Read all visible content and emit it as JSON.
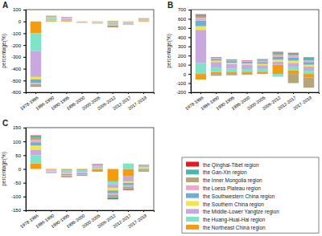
{
  "chart_data": [
    {
      "type": "bar",
      "stacked": true,
      "title": "A",
      "y_label": "percentage(%)",
      "categories": [
        "1978-1986",
        "1986-1990",
        "1990-1995",
        "1995-2000",
        "2000-2005",
        "2006-2012",
        "2012-2017",
        "2017-2019"
      ],
      "ylim": [
        -600,
        100
      ],
      "yticks": [
        -600,
        -500,
        -400,
        -300,
        -200,
        -100,
        0,
        100
      ],
      "series": [
        {
          "name": "the Qinghai-Tibet region",
          "color": "#e41a1c",
          "values": [
            -3,
            1,
            1,
            0,
            0,
            -2,
            0,
            1
          ]
        },
        {
          "name": "the Gan-Xin region",
          "color": "#4db6ac",
          "values": [
            -5,
            2,
            2,
            -1,
            -1,
            -5,
            -2,
            2
          ]
        },
        {
          "name": "the Inner Mongolia region",
          "color": "#b3a77a",
          "values": [
            -15,
            5,
            4,
            -1,
            -2,
            -8,
            -3,
            3
          ]
        },
        {
          "name": "the Loess Plateau region",
          "color": "#f4a6c6",
          "values": [
            -10,
            3,
            3,
            -1,
            -1,
            -4,
            -2,
            2
          ]
        },
        {
          "name": "the Southwestern China region",
          "color": "#6baed6",
          "values": [
            -30,
            4,
            4,
            -2,
            -2,
            -5,
            -3,
            3
          ]
        },
        {
          "name": "the Southern China region",
          "color": "#f5e642",
          "values": [
            -20,
            3,
            3,
            -1,
            -2,
            -4,
            -2,
            2
          ]
        },
        {
          "name": "the Middle-Lower Yangtze region",
          "color": "#c9a8e0",
          "values": [
            -220,
            10,
            8,
            -2,
            -4,
            -10,
            -5,
            5
          ]
        },
        {
          "name": "the Huang-Huai-Hai region",
          "color": "#7fe3c8",
          "values": [
            -150,
            12,
            7,
            -2,
            -3,
            -12,
            -6,
            4
          ]
        },
        {
          "name": "the Northeast China region",
          "color": "#f39c12",
          "values": [
            -100,
            8,
            5,
            -2,
            -3,
            6,
            -4,
            5
          ]
        }
      ]
    },
    {
      "type": "bar",
      "stacked": true,
      "title": "B",
      "y_label": "percentage(%)",
      "categories": [
        "1978-1986",
        "1986-1990",
        "1990-1995",
        "1995-2000",
        "2000-2005",
        "2006-2012",
        "2012-2017",
        "2017-2019"
      ],
      "ylim": [
        -200,
        700
      ],
      "yticks": [
        -200,
        -100,
        0,
        100,
        200,
        300,
        400,
        500,
        600,
        700
      ],
      "series": [
        {
          "name": "the Qinghai-Tibet region",
          "color": "#e41a1c",
          "values": [
            5,
            3,
            3,
            2,
            3,
            5,
            5,
            5
          ]
        },
        {
          "name": "the Gan-Xin region",
          "color": "#4db6ac",
          "values": [
            15,
            5,
            6,
            5,
            6,
            15,
            20,
            25
          ]
        },
        {
          "name": "the Inner Mongolia region",
          "color": "#b3a77a",
          "values": [
            20,
            -20,
            -15,
            -10,
            10,
            15,
            -100,
            -110
          ]
        },
        {
          "name": "the Loess Plateau region",
          "color": "#f4a6c6",
          "values": [
            30,
            10,
            10,
            10,
            12,
            20,
            25,
            20
          ]
        },
        {
          "name": "the Southwestern China region",
          "color": "#6baed6",
          "values": [
            60,
            20,
            20,
            18,
            20,
            30,
            35,
            30
          ]
        },
        {
          "name": "the Southern China region",
          "color": "#f5e642",
          "values": [
            40,
            15,
            12,
            12,
            15,
            20,
            25,
            20
          ]
        },
        {
          "name": "the Middle-Lower Yangtze region",
          "color": "#c9a8e0",
          "values": [
            360,
            60,
            50,
            50,
            40,
            35,
            40,
            45
          ]
        },
        {
          "name": "the Huang-Huai-Hai region",
          "color": "#7fe3c8",
          "values": [
            120,
            50,
            40,
            35,
            30,
            -30,
            40,
            35
          ]
        },
        {
          "name": "the Northeast China region",
          "color": "#f39c12",
          "values": [
            -60,
            20,
            18,
            18,
            25,
            100,
            40,
            -40
          ]
        }
      ]
    },
    {
      "type": "bar",
      "stacked": true,
      "title": "C",
      "y_label": "percentage(%)",
      "categories": [
        "1978-1986",
        "1986-1990",
        "1990-1995",
        "1995-2000",
        "2000-2005",
        "2006-2012",
        "2012-2017",
        "2017-2019"
      ],
      "ylim": [
        -150,
        150
      ],
      "yticks": [
        -150,
        -100,
        -50,
        0,
        50,
        100,
        150
      ],
      "series": [
        {
          "name": "the Qinghai-Tibet region",
          "color": "#e41a1c",
          "values": [
            2,
            0,
            -1,
            -1,
            1,
            -3,
            -2,
            1
          ]
        },
        {
          "name": "the Gan-Xin region",
          "color": "#4db6ac",
          "values": [
            5,
            -1,
            -2,
            -1,
            2,
            -5,
            -4,
            2
          ]
        },
        {
          "name": "the Inner Mongolia region",
          "color": "#b3a77a",
          "values": [
            10,
            -1,
            -3,
            -2,
            2,
            -8,
            -6,
            -5
          ]
        },
        {
          "name": "the Loess Plateau region",
          "color": "#f4a6c6",
          "values": [
            8,
            -1,
            -2,
            -2,
            1,
            -6,
            -5,
            2
          ]
        },
        {
          "name": "the Southwestern China region",
          "color": "#6baed6",
          "values": [
            12,
            -2,
            -4,
            -3,
            3,
            -10,
            -8,
            2
          ]
        },
        {
          "name": "the Southern China region",
          "color": "#f5e642",
          "values": [
            15,
            -2,
            -3,
            -3,
            2,
            -8,
            -6,
            2
          ]
        },
        {
          "name": "the Middle-Lower Yangtze region",
          "color": "#c9a8e0",
          "values": [
            20,
            -3,
            -6,
            -5,
            4,
            -15,
            -20,
            3
          ]
        },
        {
          "name": "the Huang-Huai-Hai region",
          "color": "#7fe3c8",
          "values": [
            30,
            -3,
            -5,
            -4,
            3,
            -10,
            20,
            3
          ]
        },
        {
          "name": "the Northeast China region",
          "color": "#f39c12",
          "values": [
            20,
            -2,
            -4,
            -4,
            -10,
            -45,
            -25,
            -5
          ]
        }
      ]
    }
  ]
}
